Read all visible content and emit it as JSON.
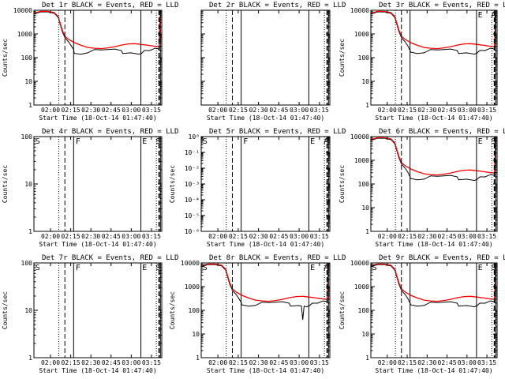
{
  "chart_data": [
    {
      "type": "line",
      "title": "Det 1r BLACK = Events, RED = LLD",
      "xlabel": "Start Time (18-Oct-14 01:47:40)",
      "ylabel": "Counts/sec",
      "xlim_min_after_start": [
        0,
        95
      ],
      "ylim": [
        1,
        10000
      ],
      "yscale": "log",
      "x_tick_labels": [
        "02:00",
        "02:15",
        "02:30",
        "02:45",
        "03:00",
        "03:15"
      ],
      "x_tick_minutes": [
        12.33,
        27.33,
        42.33,
        57.33,
        72.33,
        87.33
      ],
      "y_tick_labels": [
        "1",
        "10",
        "100",
        "1000",
        "10000"
      ],
      "y_tick_values": [
        1,
        10,
        100,
        1000,
        10000
      ],
      "flags": [],
      "markers": {
        "solid": [
          29.5,
          79.5,
          94.0
        ],
        "dashed": [
          23.0,
          93.0
        ],
        "dotted": [
          18.5,
          91.0
        ]
      },
      "series": [
        {
          "name": "Events",
          "color": "#000000",
          "x": [
            0,
            5,
            10,
            15,
            18,
            21,
            23,
            26,
            28,
            29.5,
            30,
            35,
            40,
            45,
            50,
            55,
            60,
            65,
            66,
            72,
            78,
            80,
            82,
            86,
            90,
            92,
            93,
            94
          ],
          "y": [
            7000,
            8500,
            8600,
            7500,
            5000,
            1300,
            700,
            450,
            300,
            220,
            150,
            140,
            160,
            220,
            210,
            220,
            230,
            200,
            150,
            160,
            140,
            150,
            200,
            200,
            250,
            240,
            220,
            9000
          ]
        },
        {
          "name": "LLD",
          "color": "#ff0000",
          "x": [
            0,
            5,
            10,
            15,
            18,
            21,
            23,
            26,
            28,
            30,
            35,
            40,
            45,
            50,
            55,
            60,
            65,
            70,
            75,
            80,
            85,
            90,
            93,
            94
          ],
          "y": [
            7500,
            9000,
            9000,
            8000,
            5500,
            1500,
            800,
            580,
            500,
            430,
            330,
            270,
            250,
            240,
            260,
            290,
            340,
            380,
            390,
            360,
            330,
            300,
            290,
            9000
          ]
        }
      ]
    },
    {
      "type": "line",
      "title": "Det 2r BLACK = Events, RED = LLD",
      "xlabel": "Start Time (18-Oct-14 01:47:40)",
      "ylabel": "",
      "xlim_min_after_start": [
        0,
        95
      ],
      "ylim": [
        1,
        10000
      ],
      "yscale": "log",
      "x_tick_labels": [
        "02:00",
        "02:15",
        "02:30",
        "02:45",
        "03:00",
        "03:15"
      ],
      "x_tick_minutes": [
        12.33,
        27.33,
        42.33,
        57.33,
        72.33,
        87.33
      ],
      "y_tick_labels": [],
      "y_tick_values": [],
      "flags": [],
      "markers": {
        "solid": [
          29.5,
          79.5,
          94.0
        ],
        "dashed": [
          23.0,
          93.0
        ],
        "dotted": [
          18.5,
          91.0
        ]
      },
      "series": []
    },
    {
      "type": "line",
      "title": "Det 3r BLACK = Events, RED = LLD",
      "xlabel": "Start Time (18-Oct-14 01:47:40)",
      "ylabel": "Counts/sec",
      "xlim_min_after_start": [
        0,
        95
      ],
      "ylim": [
        1,
        10000
      ],
      "yscale": "log",
      "x_tick_labels": [
        "02:00",
        "02:15",
        "02:30",
        "02:45",
        "03:00",
        "03:15"
      ],
      "x_tick_minutes": [
        12.33,
        27.33,
        42.33,
        57.33,
        72.33,
        87.33
      ],
      "y_tick_labels": [
        "1",
        "10",
        "100",
        "1000",
        "10000"
      ],
      "y_tick_values": [
        1,
        10,
        100,
        1000,
        10000
      ],
      "flags": [
        "E",
        "A"
      ],
      "markers": {
        "solid": [
          29.5,
          79.5,
          94.0
        ],
        "dashed": [
          23.0,
          93.0
        ],
        "dotted": [
          18.5,
          91.0
        ]
      },
      "series": [
        {
          "name": "Events",
          "color": "#000000",
          "x": [
            0,
            5,
            10,
            15,
            18,
            21,
            23,
            26,
            28,
            29.5,
            30,
            35,
            40,
            45,
            50,
            55,
            60,
            65,
            66,
            72,
            78,
            80,
            82,
            86,
            90,
            92,
            93,
            94
          ],
          "y": [
            7000,
            8500,
            8600,
            7500,
            5000,
            1300,
            700,
            450,
            300,
            200,
            170,
            150,
            160,
            220,
            210,
            220,
            230,
            200,
            150,
            160,
            140,
            160,
            200,
            200,
            250,
            240,
            220,
            9000
          ]
        },
        {
          "name": "LLD",
          "color": "#ff0000",
          "x": [
            0,
            5,
            10,
            15,
            18,
            21,
            23,
            26,
            28,
            30,
            35,
            40,
            45,
            50,
            55,
            60,
            65,
            70,
            75,
            80,
            85,
            90,
            93,
            94
          ],
          "y": [
            7500,
            9000,
            9000,
            8000,
            5500,
            1500,
            800,
            580,
            500,
            430,
            330,
            270,
            250,
            240,
            260,
            290,
            340,
            380,
            390,
            360,
            330,
            300,
            290,
            9000
          ]
        }
      ]
    },
    {
      "type": "line",
      "title": "Det 4r BLACK = Events, RED = LLD",
      "xlabel": "Start Time (18-Oct-14 01:47:40)",
      "ylabel": "Counts/sec",
      "xlim_min_after_start": [
        0,
        95
      ],
      "ylim": [
        1,
        100
      ],
      "yscale": "log",
      "x_tick_labels": [
        "02:00",
        "02:15",
        "02:30",
        "02:45",
        "03:00",
        "03:15"
      ],
      "x_tick_minutes": [
        12.33,
        27.33,
        42.33,
        57.33,
        72.33,
        87.33
      ],
      "y_tick_labels": [
        "1",
        "10",
        "100"
      ],
      "y_tick_values": [
        1,
        10,
        100
      ],
      "flags": [
        "S",
        "F",
        "E",
        "S"
      ],
      "markers": {
        "solid": [
          29.5,
          79.5,
          94.0
        ],
        "dashed": [
          23.0,
          93.0
        ],
        "dotted": [
          18.5,
          91.0
        ]
      },
      "series": []
    },
    {
      "type": "line",
      "title": "Det 5r BLACK = Events, RED = LLD",
      "xlabel": "Start Time (18-Oct-14 01:47:40)",
      "ylabel": "Counts/sec",
      "xlim_min_after_start": [
        0,
        95
      ],
      "ylim": [
        1e-06,
        1
      ],
      "yscale": "log",
      "x_tick_labels": [
        "02:00",
        "02:15",
        "02:30",
        "02:45",
        "03:00",
        "03:15"
      ],
      "x_tick_minutes": [
        12.33,
        27.33,
        42.33,
        57.33,
        72.33,
        87.33
      ],
      "y_tick_labels": [
        "10⁻⁶",
        "10⁻⁵",
        "10⁻⁴",
        "10⁻³",
        "10⁻²",
        "10⁻¹",
        "10⁰"
      ],
      "y_tick_values": [
        1e-06,
        1e-05,
        0.0001,
        0.001,
        0.01,
        0.1,
        1
      ],
      "flags": [
        "S",
        "F",
        "E",
        "A"
      ],
      "markers": {
        "solid": [
          29.5,
          79.5,
          94.0
        ],
        "dashed": [
          23.0,
          93.0
        ],
        "dotted": [
          18.5,
          91.0
        ]
      },
      "series": []
    },
    {
      "type": "line",
      "title": "Det 6r BLACK = Events, RED = LLD",
      "xlabel": "Start Time (18-Oct-14 01:47:40)",
      "ylabel": "Counts/sec",
      "xlim_min_after_start": [
        0,
        95
      ],
      "ylim": [
        1,
        10000
      ],
      "yscale": "log",
      "x_tick_labels": [
        "02:00",
        "02:15",
        "02:30",
        "02:45",
        "03:00",
        "03:15"
      ],
      "x_tick_minutes": [
        12.33,
        27.33,
        42.33,
        57.33,
        72.33,
        87.33
      ],
      "y_tick_labels": [
        "1",
        "10",
        "100",
        "1000",
        "10000"
      ],
      "y_tick_values": [
        1,
        10,
        100,
        1000,
        10000
      ],
      "flags": [
        "E",
        "S"
      ],
      "markers": {
        "solid": [
          29.5,
          79.5,
          94.0
        ],
        "dashed": [
          23.0,
          93.0
        ],
        "dotted": [
          18.5,
          91.0
        ]
      },
      "series": [
        {
          "name": "Events",
          "color": "#000000",
          "x": [
            0,
            5,
            10,
            15,
            18,
            21,
            23,
            26,
            28,
            29.5,
            30,
            35,
            40,
            45,
            50,
            55,
            60,
            65,
            66,
            72,
            78,
            80,
            82,
            86,
            90,
            92,
            93,
            94
          ],
          "y": [
            7000,
            8500,
            8600,
            7500,
            5000,
            1300,
            700,
            450,
            300,
            200,
            170,
            150,
            160,
            220,
            210,
            220,
            230,
            200,
            150,
            160,
            140,
            160,
            200,
            200,
            250,
            240,
            220,
            9000
          ]
        },
        {
          "name": "LLD",
          "color": "#ff0000",
          "x": [
            0,
            5,
            10,
            15,
            18,
            21,
            23,
            26,
            28,
            30,
            35,
            40,
            45,
            50,
            55,
            60,
            65,
            70,
            75,
            80,
            85,
            90,
            93,
            94
          ],
          "y": [
            7500,
            9000,
            9000,
            8000,
            5500,
            1500,
            800,
            580,
            500,
            430,
            330,
            270,
            250,
            240,
            260,
            290,
            340,
            380,
            390,
            360,
            330,
            300,
            290,
            9000
          ]
        }
      ]
    },
    {
      "type": "line",
      "title": "Det 7r BLACK = Events, RED = LLD",
      "xlabel": "Start Time (18-Oct-14 01:47:40)",
      "ylabel": "Counts/sec",
      "xlim_min_after_start": [
        0,
        95
      ],
      "ylim": [
        1,
        100
      ],
      "yscale": "log",
      "x_tick_labels": [
        "02:00",
        "02:15",
        "02:30",
        "02:45",
        "03:00",
        "03:15"
      ],
      "x_tick_minutes": [
        12.33,
        27.33,
        42.33,
        57.33,
        72.33,
        87.33
      ],
      "y_tick_labels": [
        "1",
        "10",
        "100"
      ],
      "y_tick_values": [
        1,
        10,
        100
      ],
      "flags": [
        "S",
        "F",
        "E",
        "S"
      ],
      "markers": {
        "solid": [
          29.5,
          79.5,
          94.0
        ],
        "dashed": [
          23.0,
          93.0
        ],
        "dotted": [
          18.5,
          91.0
        ]
      },
      "series": []
    },
    {
      "type": "line",
      "title": "Det 8r BLACK = Events, RED = LLD",
      "xlabel": "Start Time (18-Oct-14 01:47:40)",
      "ylabel": "Counts/sec",
      "xlim_min_after_start": [
        0,
        95
      ],
      "ylim": [
        1,
        10000
      ],
      "yscale": "log",
      "x_tick_labels": [
        "02:00",
        "02:15",
        "02:30",
        "02:45",
        "03:00",
        "03:15"
      ],
      "x_tick_minutes": [
        12.33,
        27.33,
        42.33,
        57.33,
        72.33,
        87.33
      ],
      "y_tick_labels": [
        "1",
        "10",
        "100",
        "1000",
        "10000"
      ],
      "y_tick_values": [
        1,
        10,
        100,
        1000,
        10000
      ],
      "flags": [
        "S",
        "E",
        "A"
      ],
      "markers": {
        "solid": [
          29.5,
          79.5,
          94.0
        ],
        "dashed": [
          23.0,
          93.0
        ],
        "dotted": [
          18.5,
          91.0
        ]
      },
      "series": [
        {
          "name": "Events",
          "color": "#000000",
          "x": [
            0,
            5,
            10,
            15,
            18,
            21,
            23,
            26,
            28,
            29.5,
            30,
            35,
            40,
            45,
            50,
            55,
            60,
            65,
            66,
            72,
            74,
            75,
            76,
            78,
            80,
            82,
            86,
            90,
            92,
            93,
            94
          ],
          "y": [
            7000,
            8500,
            8600,
            7500,
            5000,
            1300,
            700,
            450,
            300,
            220,
            170,
            150,
            160,
            220,
            210,
            220,
            230,
            200,
            150,
            160,
            150,
            40,
            150,
            140,
            160,
            200,
            200,
            250,
            240,
            220,
            9000
          ]
        },
        {
          "name": "LLD",
          "color": "#ff0000",
          "x": [
            0,
            5,
            10,
            15,
            18,
            21,
            23,
            26,
            28,
            30,
            35,
            40,
            45,
            50,
            55,
            60,
            65,
            70,
            75,
            80,
            85,
            90,
            93,
            94
          ],
          "y": [
            7500,
            9000,
            9000,
            8000,
            5500,
            1500,
            800,
            580,
            500,
            430,
            330,
            270,
            250,
            240,
            260,
            290,
            340,
            380,
            390,
            360,
            330,
            300,
            290,
            9000
          ]
        }
      ]
    },
    {
      "type": "line",
      "title": "Det 9r BLACK = Events, RED = LLD",
      "xlabel": "Start Time (18-Oct-14 01:47:40)",
      "ylabel": "Counts/sec",
      "xlim_min_after_start": [
        0,
        95
      ],
      "ylim": [
        1,
        10000
      ],
      "yscale": "log",
      "x_tick_labels": [
        "02:00",
        "02:15",
        "02:30",
        "02:45",
        "03:00",
        "03:15"
      ],
      "x_tick_minutes": [
        12.33,
        27.33,
        42.33,
        57.33,
        72.33,
        87.33
      ],
      "y_tick_labels": [
        "1",
        "10",
        "100",
        "1000",
        "10000"
      ],
      "y_tick_values": [
        1,
        10,
        100,
        1000,
        10000
      ],
      "flags": [
        "S",
        "E",
        "S"
      ],
      "markers": {
        "solid": [
          29.5,
          79.5,
          94.0
        ],
        "dashed": [
          23.0,
          93.0
        ],
        "dotted": [
          18.5,
          91.0
        ]
      },
      "series": [
        {
          "name": "Events",
          "color": "#000000",
          "x": [
            0,
            5,
            10,
            15,
            18,
            21,
            23,
            26,
            28,
            29.5,
            30,
            35,
            40,
            45,
            50,
            55,
            60,
            65,
            66,
            72,
            78,
            80,
            82,
            86,
            90,
            92,
            93,
            94
          ],
          "y": [
            7000,
            8500,
            8600,
            7500,
            5000,
            1300,
            700,
            450,
            300,
            200,
            170,
            150,
            160,
            220,
            210,
            220,
            230,
            200,
            150,
            160,
            140,
            160,
            200,
            200,
            250,
            240,
            220,
            9000
          ]
        },
        {
          "name": "LLD",
          "color": "#ff0000",
          "x": [
            0,
            5,
            10,
            15,
            18,
            21,
            23,
            26,
            28,
            30,
            35,
            40,
            45,
            50,
            55,
            60,
            65,
            70,
            75,
            80,
            85,
            90,
            93,
            94
          ],
          "y": [
            7500,
            9000,
            9000,
            8000,
            5500,
            1500,
            800,
            580,
            500,
            430,
            330,
            270,
            250,
            240,
            260,
            290,
            340,
            380,
            390,
            360,
            330,
            300,
            290,
            9000
          ]
        }
      ]
    }
  ]
}
